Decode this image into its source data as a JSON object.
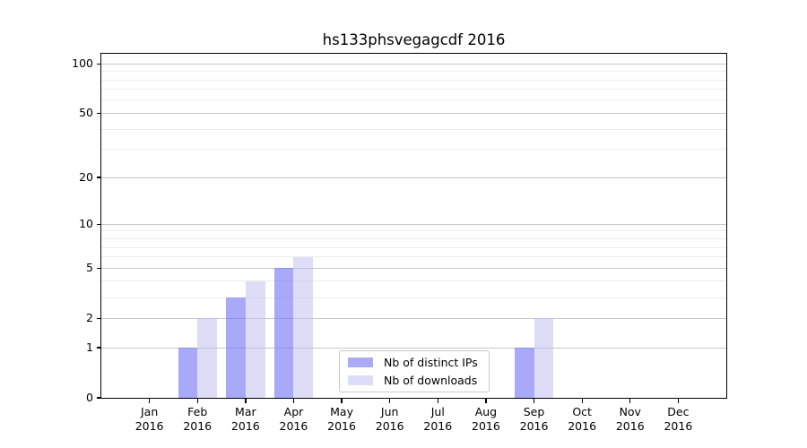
{
  "title": "hs133phsvegagcdf 2016",
  "chart_data": {
    "type": "bar",
    "title": "hs133phsvegagcdf 2016",
    "x_months": [
      "Jan",
      "Feb",
      "Mar",
      "Apr",
      "May",
      "Jun",
      "Jul",
      "Aug",
      "Sep",
      "Oct",
      "Nov",
      "Dec"
    ],
    "x_year": "2016",
    "series": [
      {
        "id": "distinct-ips",
        "name": "Nb of distinct IPs",
        "values": [
          0,
          1,
          3,
          5,
          0,
          0,
          0,
          0,
          1,
          0,
          0,
          0
        ],
        "bar_color": "rgba(117,117,247,0.62)",
        "legend_color": "#aaaaf7"
      },
      {
        "id": "downloads",
        "name": "Nb of downloads",
        "values": [
          0,
          2,
          4,
          6,
          0,
          0,
          0,
          0,
          2,
          0,
          0,
          0
        ],
        "bar_color": "rgba(187,187,240,0.5)",
        "legend_color": "#ddddf8"
      }
    ],
    "yscale": "log1p",
    "ylim": [
      0,
      115
    ],
    "yticks_major": [
      0,
      1,
      2,
      5,
      10,
      20,
      50,
      100
    ],
    "yticks_minor": [
      3,
      4,
      6,
      7,
      8,
      9,
      30,
      40,
      60,
      70,
      80,
      90
    ],
    "grid": {
      "horizontal": true,
      "vertical": false,
      "major_color": "#c8c8c8",
      "minor_color": "#ececec"
    },
    "legend": {
      "position": "inside-bottom-center",
      "border_color": "#c9c9c9",
      "background": "#ffffff"
    }
  }
}
